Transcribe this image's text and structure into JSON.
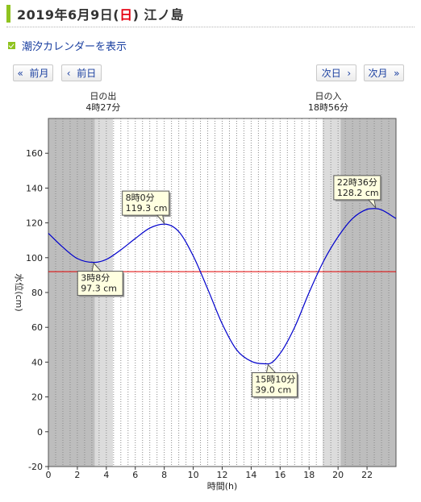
{
  "header": {
    "title_prefix": "2019年6月9日(",
    "title_dow": "日",
    "title_suffix": ") 江ノ島"
  },
  "tide_calendar_link": "潮汐カレンダーを表示",
  "nav": {
    "prev_month": "«  前月",
    "prev_day": "‹  前日",
    "next_day": "次日  ›",
    "next_month": "次月  »"
  },
  "colors": {
    "accent_green": "#8fc31f",
    "sunday_red": "#e60012",
    "link_blue": "#1a3fa0",
    "tide_line": "#0000cc",
    "reference_line": "#e00000"
  },
  "chart_data": {
    "type": "line",
    "xlabel": "時間(h)",
    "ylabel": "水位(cm)",
    "xlim": [
      0,
      24
    ],
    "ylim": [
      -20,
      180
    ],
    "xticks": [
      0,
      2,
      4,
      6,
      8,
      10,
      12,
      14,
      16,
      18,
      20,
      22
    ],
    "yticks": [
      -20,
      0,
      20,
      40,
      60,
      80,
      100,
      120,
      140,
      160
    ],
    "grid": "vertical dotted every 0.5h",
    "reference_level": 92,
    "sunrise": {
      "time": 4.45,
      "label_line1": "日の出",
      "label_line2": "4時27分"
    },
    "sunset": {
      "time": 18.933,
      "label_line1": "日の入",
      "label_line2": "18時56分"
    },
    "series": [
      {
        "points": [
          [
            0,
            114
          ],
          [
            1,
            106
          ],
          [
            2,
            99.5
          ],
          [
            3.13,
            97.3
          ],
          [
            4,
            99
          ],
          [
            5,
            104.5
          ],
          [
            6,
            111
          ],
          [
            7,
            117
          ],
          [
            8,
            119.3
          ],
          [
            9,
            115
          ],
          [
            10,
            101
          ],
          [
            11,
            82
          ],
          [
            12,
            62
          ],
          [
            13,
            47
          ],
          [
            14,
            40.5
          ],
          [
            15.17,
            39.0
          ],
          [
            16,
            45
          ],
          [
            17,
            60
          ],
          [
            18,
            80
          ],
          [
            19,
            98
          ],
          [
            20,
            112
          ],
          [
            21,
            122.5
          ],
          [
            22,
            127.8
          ],
          [
            22.6,
            128.2
          ],
          [
            23,
            127.5
          ],
          [
            24,
            122.5
          ]
        ]
      }
    ],
    "annotations": [
      {
        "x": 3.13,
        "y": 97.3,
        "label_time": "3時8分",
        "label_value": "97.3 cm",
        "placement": "below"
      },
      {
        "x": 8.0,
        "y": 119.3,
        "label_time": "8時0分",
        "label_value": "119.3 cm",
        "placement": "above"
      },
      {
        "x": 15.17,
        "y": 39.0,
        "label_time": "15時10分",
        "label_value": "39.0 cm",
        "placement": "below"
      },
      {
        "x": 22.6,
        "y": 128.2,
        "label_time": "22時36分",
        "label_value": "128.2 cm",
        "placement": "above"
      }
    ]
  }
}
